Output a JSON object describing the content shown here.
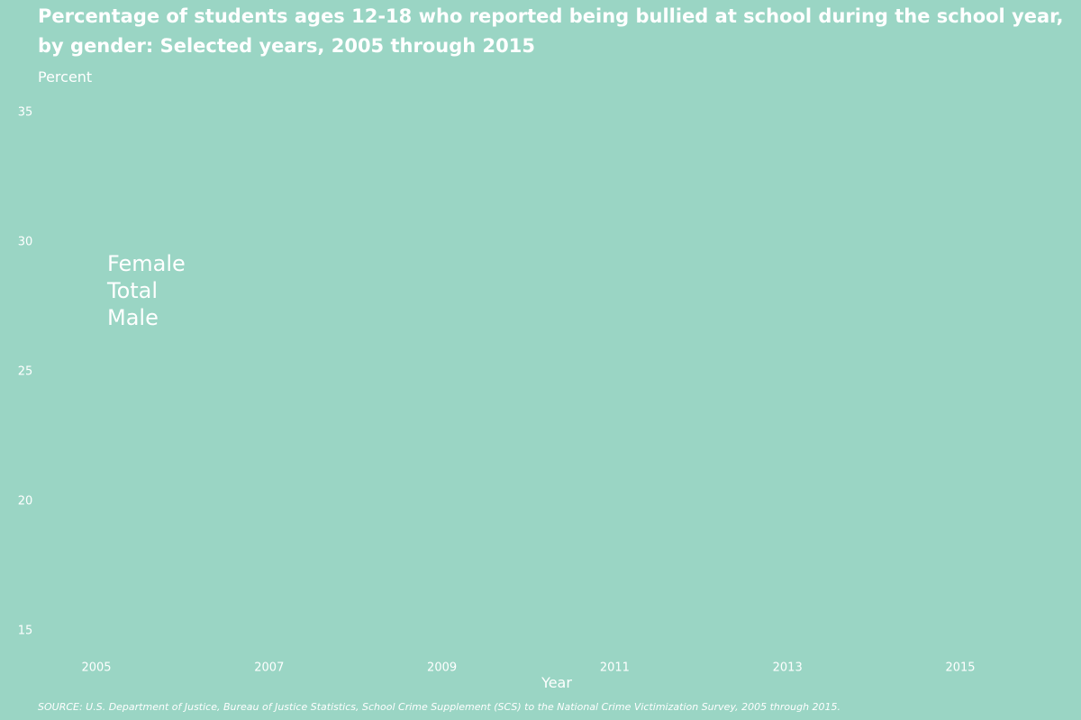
{
  "chart_data": {
    "type": "line",
    "title": [
      "Percentage of students ages 12-18 who reported being bullied at school during the school year,",
      "by gender: Selected years, 2005 through 2015"
    ],
    "ylabel": "Percent",
    "xlabel": "Year",
    "ylim": [
      15,
      35
    ],
    "yticks": [
      "15",
      "20",
      "25",
      "30",
      "35"
    ],
    "xticks": [
      "2005",
      "2007",
      "2009",
      "2011",
      "2013",
      "2015"
    ],
    "grid": false,
    "legend_placement": "top-left",
    "series": [
      {
        "name": "Female"
      },
      {
        "name": "Total"
      },
      {
        "name": "Male"
      }
    ]
  },
  "source_note": "SOURCE: U.S. Department of Justice, Bureau of Justice Statistics, School Crime Supplement (SCS) to the National Crime Victimization Survey, 2005 through 2015.",
  "colors": {
    "background": "#9ad5c4",
    "text": "#ffffff"
  }
}
